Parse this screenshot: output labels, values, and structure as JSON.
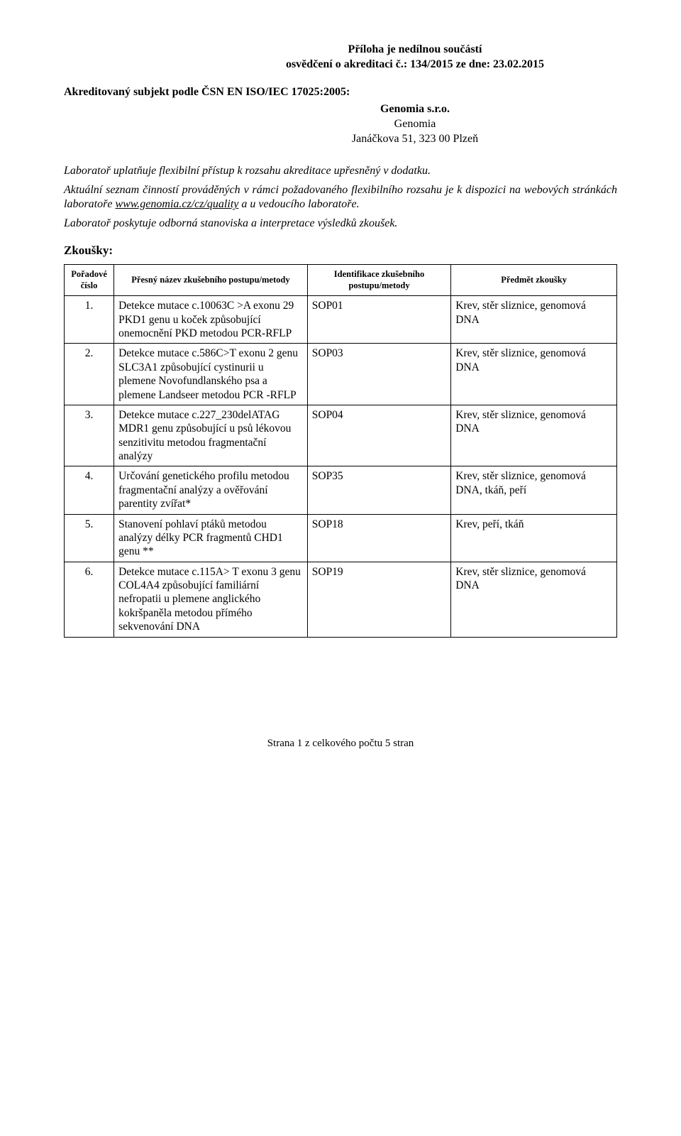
{
  "header": {
    "line1": "Příloha je nedílnou součástí",
    "line2": "osvědčení o akreditaci č.: 134/2015  ze dne: 23.02.2015"
  },
  "subject_line": "Akreditovaný subjekt podle ČSN EN ISO/IEC 17025:2005:",
  "company": {
    "name": "Genomia s.r.o.",
    "lab": "Genomia",
    "addr": "Janáčkova 51, 323 00 Plzeň"
  },
  "intro": {
    "p1_a": "Laboratoř uplatňuje flexibilní přístup k rozsahu akreditace upřesněný v dodatku.",
    "p1_b_pre": "Aktuální seznam činností prováděných v rámci požadovaného flexibilního rozsahu je k ",
    "p1_b_disp": "dispozici na webových stránkách laboratoře ",
    "p1_b_link": "www.genomia.cz/cz/quality",
    "p1_b_post": " a u vedoucího laboratoře.",
    "p2": "Laboratoř poskytuje odborná stanoviska a interpretace výsledků zkoušek."
  },
  "zkousky_label": "Zkoušky:",
  "table": {
    "headers": {
      "h1": "Pořadové číslo",
      "h2": "Přesný název zkušebního postupu/metody",
      "h3": "Identifikace zkušebního postupu/metody",
      "h4": "Předmět zkoušky"
    },
    "rows": [
      {
        "num": "1.",
        "name": "Detekce mutace c.10063C >A exonu 29 PKD1 genu u koček způsobující onemocnění PKD metodou PCR-RFLP",
        "id": "SOP01",
        "subj": "Krev, stěr sliznice, genomová DNA"
      },
      {
        "num": "2.",
        "name": "Detekce mutace c.586C>T exonu 2 genu SLC3A1 způsobující cystinurii u plemene Novofundlanského psa a plemene Landseer metodou PCR -RFLP",
        "id": "SOP03",
        "subj": "Krev, stěr sliznice, genomová DNA"
      },
      {
        "num": "3.",
        "name": "Detekce mutace c.227_230delATAG MDR1 genu způsobující u psů lékovou senzitivitu metodou fragmentační analýzy",
        "id": "SOP04",
        "subj": "Krev, stěr sliznice, genomová DNA"
      },
      {
        "num": "4.",
        "name": "Určování genetického profilu metodou fragmentační analýzy a ověřování parentity zvířat*",
        "id": "SOP35",
        "subj": "Krev, stěr sliznice, genomová DNA, tkáň, peří"
      },
      {
        "num": "5.",
        "name": "Stanovení pohlaví ptáků metodou analýzy délky PCR fragmentů CHD1 genu **",
        "id": "SOP18",
        "subj": "Krev, peří, tkáň"
      },
      {
        "num": "6.",
        "name": "Detekce mutace c.115A> T exonu 3 genu COL4A4 způsobující familiární nefropatii u plemene anglického kokršpaněla metodou přímého sekvenování DNA",
        "id": "SOP19",
        "subj": "Krev, stěr sliznice, genomová DNA"
      }
    ]
  },
  "footer": "Strana 1 z celkového počtu 5 stran"
}
